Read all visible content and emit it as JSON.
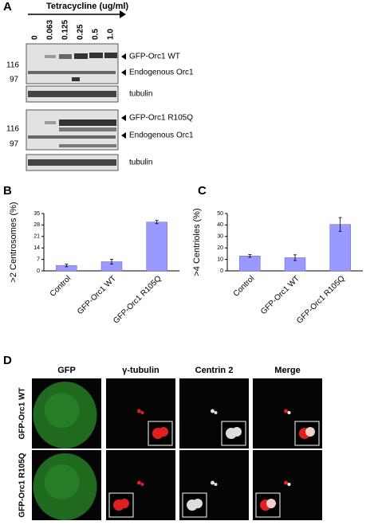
{
  "panel_a": {
    "label": "A",
    "header": "Tetracycline (ug/ml)",
    "concentrations": [
      "0",
      "0.063",
      "0.125",
      "0.25",
      "0.5",
      "1.0"
    ],
    "blot_1": {
      "markers": [
        "116",
        "97"
      ],
      "bands": [
        "GFP-Orc1 WT",
        "Endogenous Orc1"
      ],
      "loading": "tubulin"
    },
    "blot_2": {
      "markers": [
        "116",
        "97"
      ],
      "bands": [
        "GFP-Orc1 R105Q",
        "Endogenous Orc1"
      ],
      "loading": "tubulin"
    }
  },
  "chart_data": [
    {
      "type": "bar",
      "panel_label": "B",
      "y_label": ">2 Centrosomes (%)",
      "categories": [
        "Control",
        "GFP-Orc1 WT",
        "GFP-Orc1 R105Q"
      ],
      "values": [
        3.3,
        5.6,
        29.8
      ],
      "errors": [
        0.8,
        1.5,
        1.0
      ],
      "color": "#9999ff",
      "ylim": [
        0,
        35
      ],
      "yticks": [
        0,
        7,
        14,
        21,
        28,
        35
      ]
    },
    {
      "type": "bar",
      "panel_label": "C",
      "y_label": ">4 Centrioles (%)",
      "categories": [
        "Control",
        "GFP-Orc1 WT",
        "GFP-Orc1 R105Q"
      ],
      "values": [
        13,
        11.5,
        40.5
      ],
      "errors": [
        1.2,
        2.5,
        6
      ],
      "color": "#9999ff",
      "ylim": [
        0,
        50
      ],
      "yticks": [
        0,
        10,
        20,
        30,
        40,
        50
      ]
    }
  ],
  "panel_d": {
    "label": "D",
    "columns": [
      "GFP",
      "γ-tubulin",
      "Centrin 2",
      "Merge"
    ],
    "rows": [
      "GFP-Orc1 WT",
      "GFP-Orc1 R105Q"
    ]
  }
}
